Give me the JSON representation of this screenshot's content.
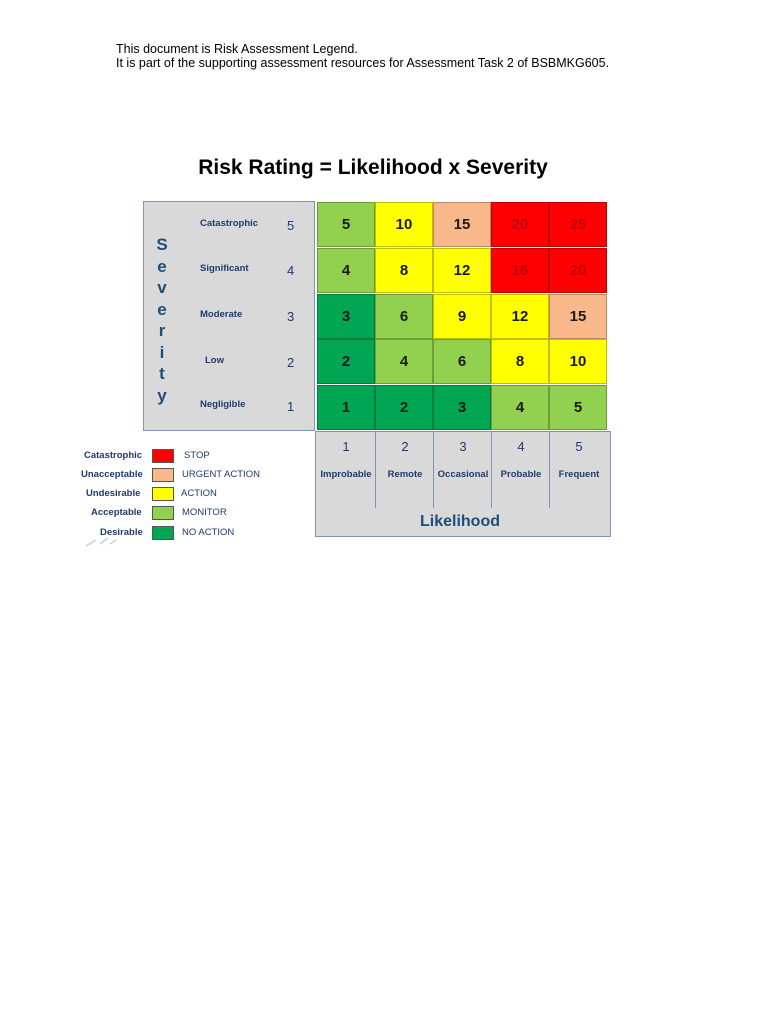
{
  "intro": {
    "line1": "This document is Risk Assessment Legend.",
    "line2": "It is part of the supporting assessment resources for Assessment Task 2 of BSBMKG605."
  },
  "title": "Risk Rating = Likelihood x Severity",
  "severity": {
    "axis_letters": [
      "S",
      "e",
      "v",
      "e",
      "r",
      "i",
      "t",
      "y"
    ],
    "levels": [
      {
        "name": "Catastrophic",
        "value": "5"
      },
      {
        "name": "Significant",
        "value": "4"
      },
      {
        "name": "Moderate",
        "value": "3"
      },
      {
        "name": "Low",
        "value": "2"
      },
      {
        "name": "Negligible",
        "value": "1"
      }
    ]
  },
  "likelihood": {
    "title": "Likelihood",
    "levels": [
      {
        "name": "Improbable",
        "value": "1"
      },
      {
        "name": "Remote",
        "value": "2"
      },
      {
        "name": "Occasional",
        "value": "3"
      },
      {
        "name": "Probable",
        "value": "4"
      },
      {
        "name": "Frequent",
        "value": "5"
      }
    ]
  },
  "matrix": [
    [
      {
        "v": "5",
        "c": "monitor"
      },
      {
        "v": "10",
        "c": "action"
      },
      {
        "v": "15",
        "c": "urgent"
      },
      {
        "v": "20",
        "c": "stop"
      },
      {
        "v": "25",
        "c": "stop"
      }
    ],
    [
      {
        "v": "4",
        "c": "monitor"
      },
      {
        "v": "8",
        "c": "action"
      },
      {
        "v": "12",
        "c": "action"
      },
      {
        "v": "16",
        "c": "stop"
      },
      {
        "v": "20",
        "c": "stop"
      }
    ],
    [
      {
        "v": "3",
        "c": "noaction"
      },
      {
        "v": "6",
        "c": "monitor"
      },
      {
        "v": "9",
        "c": "action"
      },
      {
        "v": "12",
        "c": "action"
      },
      {
        "v": "15",
        "c": "urgent"
      }
    ],
    [
      {
        "v": "2",
        "c": "noaction"
      },
      {
        "v": "4",
        "c": "monitor"
      },
      {
        "v": "6",
        "c": "monitor"
      },
      {
        "v": "8",
        "c": "action"
      },
      {
        "v": "10",
        "c": "action"
      }
    ],
    [
      {
        "v": "1",
        "c": "noaction"
      },
      {
        "v": "2",
        "c": "noaction"
      },
      {
        "v": "3",
        "c": "noaction"
      },
      {
        "v": "4",
        "c": "monitor"
      },
      {
        "v": "5",
        "c": "monitor"
      }
    ]
  ],
  "colors": {
    "stop": "#ff0000",
    "urgent": "#f8b88a",
    "action": "#ffff00",
    "monitor": "#92d050",
    "noaction": "#00a651"
  },
  "legend": [
    {
      "category": "Catastrophic",
      "action": "STOP",
      "color_key": "stop"
    },
    {
      "category": "Unacceptable",
      "action": "URGENT ACTION",
      "color_key": "urgent"
    },
    {
      "category": "Undesirable",
      "action": "ACTION",
      "color_key": "action"
    },
    {
      "category": "Acceptable",
      "action": "MONITOR",
      "color_key": "monitor"
    },
    {
      "category": "Desirable",
      "action": "NO ACTION",
      "color_key": "noaction"
    }
  ]
}
